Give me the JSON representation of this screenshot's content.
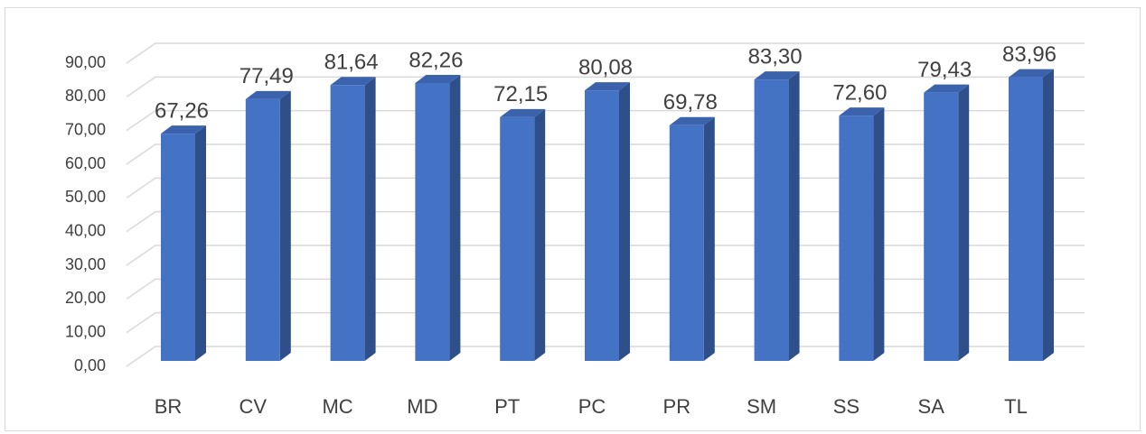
{
  "chart_data": {
    "type": "bar3d",
    "categories": [
      "BR",
      "CV",
      "MC",
      "MD",
      "PT",
      "PC",
      "PR",
      "SM",
      "SS",
      "SA",
      "TL"
    ],
    "values": [
      67.26,
      77.49,
      81.64,
      82.26,
      72.15,
      80.08,
      69.78,
      83.3,
      72.6,
      79.43,
      83.96
    ],
    "value_labels": [
      "67,26",
      "77,49",
      "81,64",
      "82,26",
      "72,15",
      "80,08",
      "69,78",
      "83,30",
      "72,60",
      "79,43",
      "83,96"
    ],
    "color": "#4472c4",
    "ylim": [
      0,
      90
    ],
    "yticks": [
      {
        "value": 0,
        "label": "0,00"
      },
      {
        "value": 10,
        "label": "10,00"
      },
      {
        "value": 20,
        "label": "20,00"
      },
      {
        "value": 30,
        "label": "30,00"
      },
      {
        "value": 40,
        "label": "40,00"
      },
      {
        "value": 50,
        "label": "50,00"
      },
      {
        "value": 60,
        "label": "60,00"
      },
      {
        "value": 70,
        "label": "70,00"
      },
      {
        "value": 80,
        "label": "80,00"
      },
      {
        "value": 90,
        "label": "90,00"
      }
    ],
    "grid": true
  }
}
